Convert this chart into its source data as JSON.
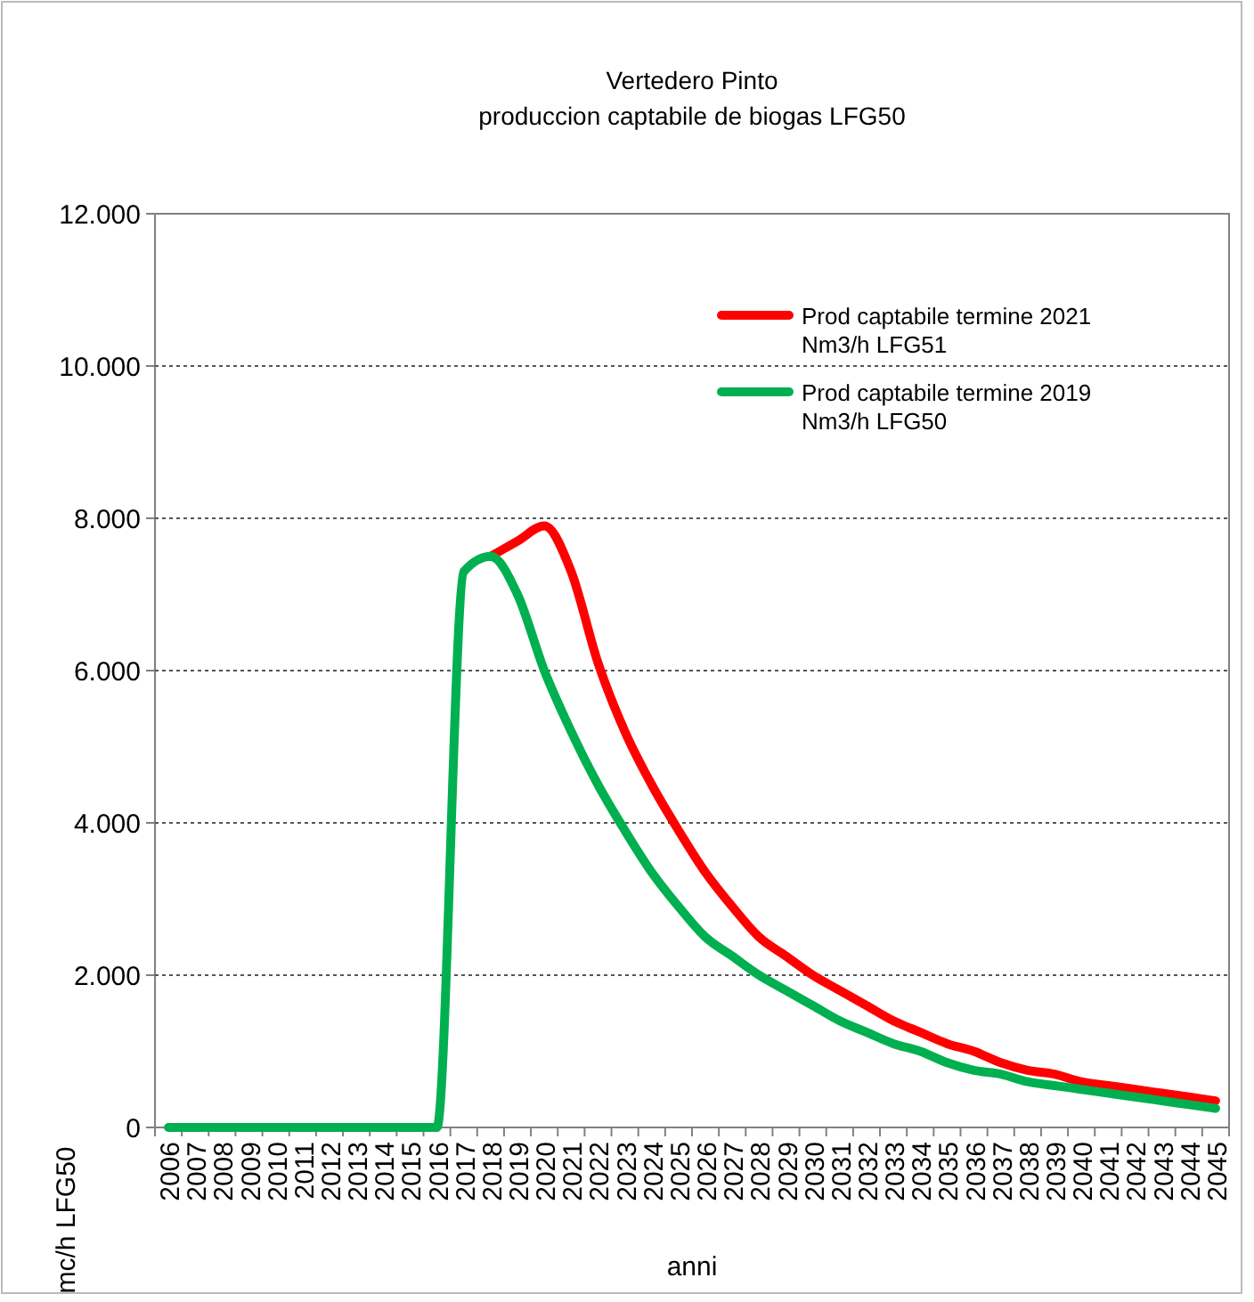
{
  "chart_data": {
    "type": "line",
    "title": "Vertedero Pinto",
    "subtitle": "produccion captabile de biogas LFG50",
    "xlabel": "anni",
    "ylabel": "mc/h LFG50",
    "categories": [
      "2006",
      "2007",
      "2008",
      "2009",
      "2010",
      "2011",
      "2012",
      "2013",
      "2014",
      "2015",
      "2016",
      "2017",
      "2018",
      "2019",
      "2020",
      "2021",
      "2022",
      "2023",
      "2024",
      "2025",
      "2026",
      "2027",
      "2028",
      "2029",
      "2030",
      "2031",
      "2032",
      "2033",
      "2034",
      "2035",
      "2036",
      "2037",
      "2038",
      "2039",
      "2040",
      "2041",
      "2042",
      "2043",
      "2044",
      "2045"
    ],
    "series": [
      {
        "name": "Prod captabile termine 2021\nNm3/h LFG51",
        "color": "#ff0000",
        "values": [
          null,
          null,
          null,
          null,
          null,
          null,
          null,
          null,
          null,
          null,
          null,
          null,
          7500,
          7700,
          7900,
          7300,
          6100,
          5200,
          4500,
          3900,
          3350,
          2900,
          2500,
          2250,
          2000,
          1800,
          1600,
          1400,
          1250,
          1100,
          1000,
          850,
          750,
          700,
          600,
          550,
          500,
          450,
          400,
          350
        ]
      },
      {
        "name": "Prod captabile termine 2019\nNm3/h LFG50",
        "color": "#00b050",
        "values": [
          0,
          0,
          0,
          0,
          0,
          0,
          0,
          0,
          0,
          0,
          0,
          7300,
          7500,
          7000,
          6000,
          5200,
          4500,
          3900,
          3350,
          2900,
          2500,
          2250,
          2000,
          1800,
          1600,
          1400,
          1250,
          1100,
          1000,
          850,
          750,
          700,
          600,
          550,
          500,
          450,
          400,
          350,
          300,
          250
        ]
      }
    ],
    "ylim": [
      0,
      12000
    ],
    "yticks": [
      {
        "value": 0,
        "label": "0"
      },
      {
        "value": 2000,
        "label": "2.000"
      },
      {
        "value": 4000,
        "label": "4.000"
      },
      {
        "value": 6000,
        "label": "6.000"
      },
      {
        "value": 8000,
        "label": "8.000"
      },
      {
        "value": 10000,
        "label": "10.000"
      },
      {
        "value": 12000,
        "label": "12.000"
      }
    ],
    "grid": "y",
    "legend": "top right",
    "marker": "none",
    "line_style": "solid"
  }
}
